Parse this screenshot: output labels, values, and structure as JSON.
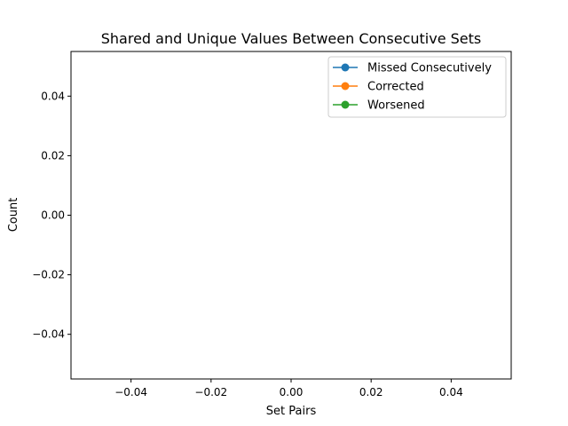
{
  "chart_data": {
    "type": "line",
    "title": "Shared and Unique Values Between Consecutive Sets",
    "xlabel": "Set Pairs",
    "ylabel": "Count",
    "xlim": [
      -0.055,
      0.055
    ],
    "ylim": [
      -0.055,
      0.055
    ],
    "xticks": [
      -0.04,
      -0.02,
      0.0,
      0.02,
      0.04
    ],
    "xtick_labels": [
      "−0.04",
      "−0.02",
      "0.00",
      "0.02",
      "0.04"
    ],
    "yticks": [
      -0.04,
      -0.02,
      0.0,
      0.02,
      0.04
    ],
    "ytick_labels": [
      "−0.04",
      "−0.02",
      "0.00",
      "0.02",
      "0.04"
    ],
    "grid": false,
    "legend_position": "top-right",
    "series": [
      {
        "name": "Missed Consecutively",
        "color": "#1f77b4",
        "marker": "circle",
        "x": [],
        "y": []
      },
      {
        "name": "Corrected",
        "color": "#ff7f0e",
        "marker": "circle",
        "x": [],
        "y": []
      },
      {
        "name": "Worsened",
        "color": "#2ca02c",
        "marker": "circle",
        "x": [],
        "y": []
      }
    ]
  }
}
